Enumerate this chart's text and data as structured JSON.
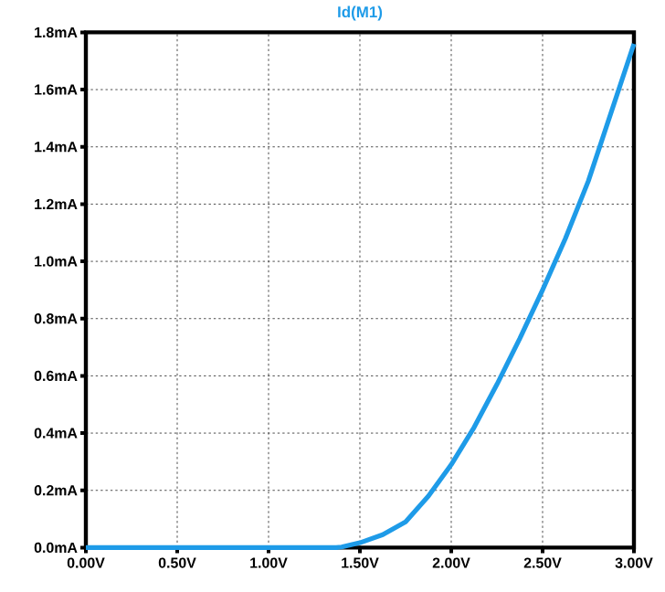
{
  "chart_data": {
    "type": "line",
    "title": "Id(M1)",
    "x": [
      0,
      0.5,
      1.0,
      1.37,
      1.4,
      1.5,
      1.625,
      1.75,
      1.875,
      2.0,
      2.125,
      2.25,
      2.375,
      2.5,
      2.625,
      2.75,
      2.875,
      3.0
    ],
    "series": [
      {
        "color": "#1e9be8",
        "values": [
          0,
          0,
          0,
          0,
          0.002,
          0.017,
          0.045,
          0.09,
          0.18,
          0.29,
          0.42,
          0.57,
          0.73,
          0.9,
          1.08,
          1.28,
          1.52,
          1.76
        ]
      }
    ],
    "xlim": [
      0,
      3.0
    ],
    "xticks": [
      {
        "value": 0,
        "label": "0.00V"
      },
      {
        "value": 0.5,
        "label": "0.50V"
      },
      {
        "value": 1.0,
        "label": "1.00V"
      },
      {
        "value": 1.5,
        "label": "1.50V"
      },
      {
        "value": 2.0,
        "label": "2.00V"
      },
      {
        "value": 2.5,
        "label": "2.50V"
      },
      {
        "value": 3.0,
        "label": "3.00V"
      }
    ],
    "ylim": [
      0,
      1.8
    ],
    "yticks": [
      {
        "value": 0,
        "label": "0.0mA"
      },
      {
        "value": 0.2,
        "label": "0.2mA"
      },
      {
        "value": 0.4,
        "label": "0.4mA"
      },
      {
        "value": 0.6,
        "label": "0.6mA"
      },
      {
        "value": 0.8,
        "label": "0.8mA"
      },
      {
        "value": 1.0,
        "label": "1.0mA"
      },
      {
        "value": 1.2,
        "label": "1.2mA"
      },
      {
        "value": 1.4,
        "label": "1.4mA"
      },
      {
        "value": 1.6,
        "label": "1.6mA"
      },
      {
        "value": 1.8,
        "label": "1.8mA"
      }
    ],
    "grid": true,
    "marker": "none",
    "line_style": "solid"
  }
}
